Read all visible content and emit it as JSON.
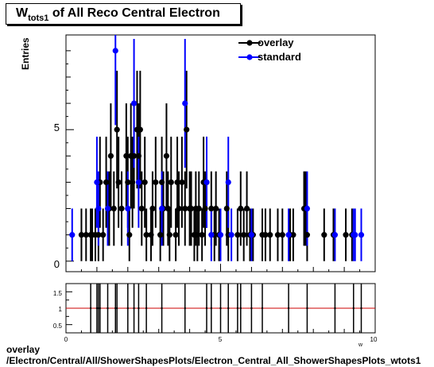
{
  "chart_data": [
    {
      "type": "scatter",
      "title_main": "W",
      "title_sub": "tots1",
      "title_rest": " of All Reco Central Electron",
      "ylabel": "Entries",
      "xlim": [
        0,
        10
      ],
      "ylim": [
        -0.4,
        8.6
      ],
      "y_ticks": [
        0,
        5
      ],
      "legend": {
        "placement": "top-right",
        "entries": [
          "overlay",
          "standard"
        ]
      },
      "colors": {
        "overlay": "#000000",
        "standard": "#0000ff",
        "ratio_line": "#cc0000"
      },
      "series": [
        {
          "name": "overlay",
          "points": [
            [
              0.5,
              1
            ],
            [
              0.65,
              1
            ],
            [
              0.8,
              1
            ],
            [
              0.85,
              1
            ],
            [
              0.95,
              1
            ],
            [
              1.05,
              1
            ],
            [
              1.1,
              3
            ],
            [
              1.2,
              1
            ],
            [
              1.3,
              3
            ],
            [
              1.4,
              2
            ],
            [
              1.45,
              4
            ],
            [
              1.55,
              2
            ],
            [
              1.65,
              5
            ],
            [
              1.7,
              3
            ],
            [
              1.8,
              2
            ],
            [
              1.95,
              4
            ],
            [
              2.0,
              3
            ],
            [
              2.05,
              1
            ],
            [
              2.1,
              4
            ],
            [
              2.15,
              3
            ],
            [
              2.2,
              4
            ],
            [
              2.3,
              5
            ],
            [
              2.35,
              4
            ],
            [
              2.4,
              5
            ],
            [
              2.45,
              2
            ],
            [
              2.55,
              3
            ],
            [
              2.6,
              1
            ],
            [
              2.75,
              1
            ],
            [
              2.8,
              2
            ],
            [
              2.9,
              3
            ],
            [
              3.05,
              1
            ],
            [
              3.1,
              3
            ],
            [
              3.15,
              2
            ],
            [
              3.25,
              4
            ],
            [
              3.3,
              2
            ],
            [
              3.35,
              1
            ],
            [
              3.4,
              3
            ],
            [
              3.55,
              1
            ],
            [
              3.6,
              3
            ],
            [
              3.65,
              2
            ],
            [
              3.75,
              3
            ],
            [
              3.85,
              2
            ],
            [
              3.9,
              5
            ],
            [
              4.0,
              2
            ],
            [
              4.05,
              2
            ],
            [
              4.15,
              1
            ],
            [
              4.2,
              2
            ],
            [
              4.25,
              1
            ],
            [
              4.3,
              2
            ],
            [
              4.4,
              1
            ],
            [
              4.45,
              3
            ],
            [
              4.5,
              2
            ],
            [
              4.55,
              3
            ],
            [
              4.7,
              2
            ],
            [
              4.8,
              1
            ],
            [
              4.85,
              2
            ],
            [
              4.95,
              1
            ],
            [
              5.2,
              2
            ],
            [
              5.25,
              1
            ],
            [
              5.55,
              1
            ],
            [
              5.65,
              2
            ],
            [
              5.75,
              1
            ],
            [
              5.85,
              2
            ],
            [
              5.95,
              1
            ],
            [
              6.05,
              1
            ],
            [
              6.35,
              1
            ],
            [
              6.45,
              1
            ],
            [
              6.6,
              1
            ],
            [
              6.85,
              1
            ],
            [
              7.0,
              1
            ],
            [
              7.25,
              1
            ],
            [
              7.35,
              1
            ],
            [
              7.7,
              2
            ],
            [
              7.75,
              2
            ],
            [
              7.8,
              1
            ],
            [
              8.35,
              1
            ],
            [
              8.65,
              1
            ],
            [
              9.05,
              1
            ],
            [
              9.25,
              1
            ]
          ]
        },
        {
          "name": "standard",
          "points": [
            [
              0.2,
              1
            ],
            [
              1.0,
              3
            ],
            [
              1.05,
              2
            ],
            [
              1.35,
              2
            ],
            [
              1.6,
              8
            ],
            [
              2.0,
              2
            ],
            [
              2.2,
              6
            ],
            [
              2.35,
              3
            ],
            [
              3.1,
              2
            ],
            [
              3.85,
              6
            ],
            [
              4.55,
              3
            ],
            [
              4.7,
              1
            ],
            [
              5.0,
              1
            ],
            [
              5.25,
              3
            ],
            [
              5.35,
              1
            ],
            [
              6.0,
              1
            ],
            [
              7.2,
              1
            ],
            [
              7.8,
              2
            ],
            [
              8.7,
              1
            ],
            [
              9.3,
              1
            ],
            [
              9.35,
              1
            ],
            [
              9.55,
              1
            ]
          ]
        }
      ]
    },
    {
      "type": "scatter",
      "xlim": [
        0,
        10
      ],
      "ylim": [
        0.25,
        1.75
      ],
      "y_ticks": [
        0.5,
        1,
        1.5
      ],
      "x_ticks": [
        0,
        5,
        10
      ],
      "reference_line": 1.0,
      "points": [
        [
          0.8,
          1
        ],
        [
          1.0,
          1
        ],
        [
          1.05,
          1
        ],
        [
          1.1,
          1
        ],
        [
          1.35,
          1
        ],
        [
          1.6,
          1
        ],
        [
          1.65,
          1
        ],
        [
          2.0,
          1
        ],
        [
          2.2,
          1
        ],
        [
          2.35,
          1
        ],
        [
          2.6,
          1
        ],
        [
          3.1,
          1
        ],
        [
          3.85,
          1
        ],
        [
          4.55,
          1
        ],
        [
          4.7,
          1
        ],
        [
          5.0,
          1
        ],
        [
          5.25,
          1
        ],
        [
          5.55,
          1
        ],
        [
          5.65,
          1
        ],
        [
          6.0,
          1
        ],
        [
          6.35,
          1
        ],
        [
          7.2,
          1
        ],
        [
          7.8,
          1
        ],
        [
          8.7,
          1
        ],
        [
          9.3,
          1
        ],
        [
          9.55,
          1
        ]
      ]
    }
  ],
  "x_axis_letter": "w",
  "footer": {
    "line1": "overlay",
    "line2": "/Electron/Central/All/ShowerShapesPlots/Electron_Central_All_ShowerShapesPlots_wtots1"
  }
}
